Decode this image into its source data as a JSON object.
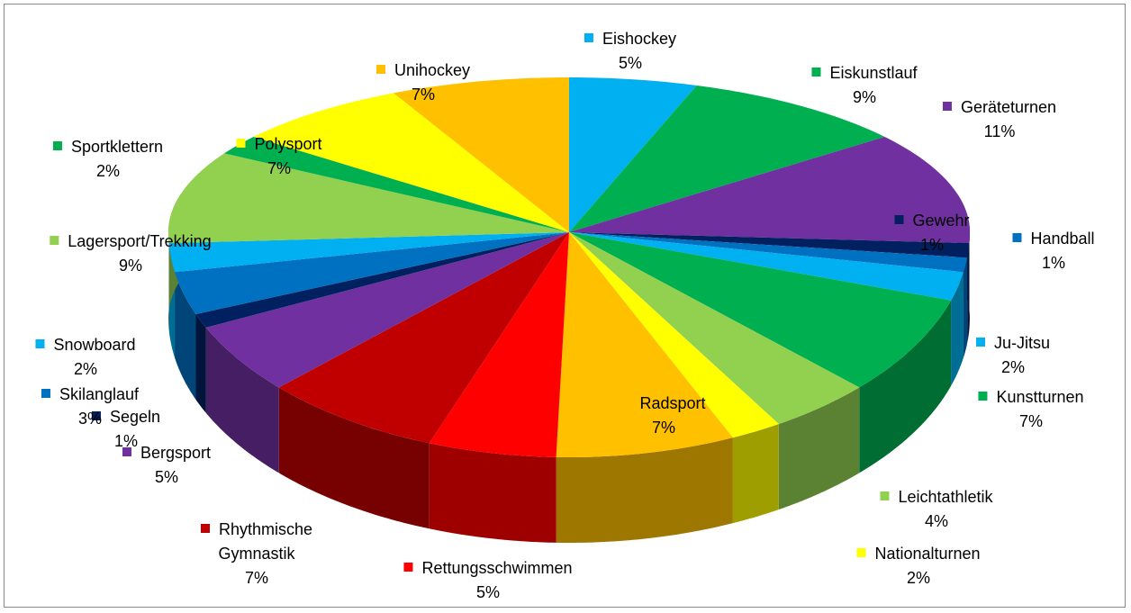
{
  "chart_data": {
    "type": "pie",
    "categories": [
      "Eishockey",
      "Eiskunstlauf",
      "Geräteturnen",
      "Gewehr",
      "Handball",
      "Ju-Jitsu",
      "Kunstturnen",
      "Leichtathletik",
      "Nationalturnen",
      "Radsport",
      "Rettungsschwimmen",
      "Rhythmische Gymnastik",
      "Bergsport",
      "Segeln",
      "Skilanglauf",
      "Snowboard",
      "Lagersport/Trekking",
      "Sportklettern",
      "Polysport",
      "Unihockey"
    ],
    "values": [
      5,
      9,
      11,
      1,
      1,
      2,
      7,
      4,
      2,
      7,
      5,
      7,
      5,
      1,
      3,
      2,
      9,
      2,
      7,
      7
    ],
    "value_labels": [
      "5%",
      "9%",
      "11%",
      "1%",
      "1%",
      "2%",
      "7%",
      "4%",
      "2%",
      "7%",
      "5%",
      "7%",
      "5%",
      "1%",
      "3%",
      "2%",
      "9%",
      "2%",
      "7%",
      "7%"
    ],
    "colors": [
      "#00b0f0",
      "#00b050",
      "#7030a0",
      "#002060",
      "#0070c0",
      "#00b0f0",
      "#00b050",
      "#92d050",
      "#ffff00",
      "#ffc000",
      "#ff0000",
      "#c00000",
      "#7030a0",
      "#002060",
      "#0070c0",
      "#00b0f0",
      "#92d050",
      "#00b050",
      "#ffff00",
      "#ffc000"
    ]
  }
}
